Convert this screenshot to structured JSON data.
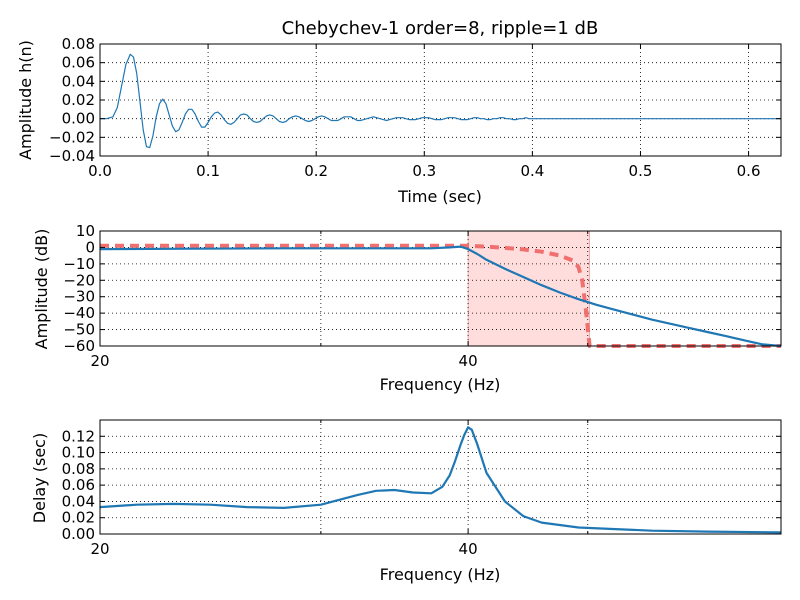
{
  "chart_data": [
    {
      "type": "line",
      "title": "Chebychev-1 order=8, ripple=1 dB",
      "xlabel": "Time (sec)",
      "ylabel": "Amplitude h(n)",
      "xlim": [
        0,
        0.63
      ],
      "ylim": [
        -0.04,
        0.08
      ],
      "xticks": [
        0.0,
        0.1,
        0.2,
        0.3,
        0.4,
        0.5,
        0.6
      ],
      "xtick_labels": [
        "0.0",
        "0.1",
        "0.2",
        "0.3",
        "0.4",
        "0.5",
        "0.6"
      ],
      "yticks": [
        -0.04,
        -0.02,
        0.0,
        0.02,
        0.04,
        0.06,
        0.08
      ],
      "ytick_labels": [
        "−0.04",
        "−0.02",
        "0.00",
        "0.02",
        "0.04",
        "0.06",
        "0.08"
      ],
      "grid": true,
      "series": [
        {
          "color": "#1f77b4",
          "x": [
            0.0,
            0.006,
            0.012,
            0.016,
            0.02,
            0.024,
            0.028,
            0.031,
            0.034,
            0.037,
            0.04,
            0.043,
            0.046,
            0.049,
            0.052,
            0.055,
            0.058,
            0.061,
            0.064,
            0.067,
            0.07,
            0.073,
            0.076,
            0.079,
            0.082,
            0.085,
            0.088,
            0.091,
            0.094,
            0.097,
            0.1,
            0.103,
            0.106,
            0.109,
            0.112,
            0.115,
            0.118,
            0.121,
            0.124,
            0.127,
            0.13,
            0.133,
            0.136,
            0.139,
            0.142,
            0.145,
            0.148,
            0.151,
            0.154,
            0.157,
            0.16,
            0.163,
            0.166,
            0.169,
            0.172,
            0.175,
            0.178,
            0.181,
            0.184,
            0.187,
            0.19,
            0.193,
            0.196,
            0.199,
            0.202,
            0.205,
            0.208,
            0.211,
            0.214,
            0.217,
            0.22,
            0.223,
            0.226,
            0.229,
            0.232,
            0.235,
            0.238,
            0.241,
            0.244,
            0.247,
            0.25,
            0.253,
            0.256,
            0.259,
            0.262,
            0.265,
            0.268,
            0.271,
            0.274,
            0.277,
            0.28,
            0.283,
            0.286,
            0.289,
            0.292,
            0.295,
            0.298,
            0.301,
            0.304,
            0.307,
            0.31,
            0.313,
            0.316,
            0.319,
            0.322,
            0.325,
            0.328,
            0.331,
            0.334,
            0.337,
            0.34,
            0.343,
            0.346,
            0.349,
            0.352,
            0.355,
            0.358,
            0.361,
            0.364,
            0.367,
            0.37,
            0.373,
            0.376,
            0.379,
            0.382,
            0.385,
            0.388,
            0.391,
            0.394,
            0.397,
            0.4,
            0.41,
            0.42,
            0.43,
            0.44,
            0.45,
            0.46,
            0.47,
            0.48,
            0.49,
            0.5,
            0.52,
            0.54,
            0.56,
            0.58,
            0.6,
            0.63
          ],
          "y": [
            0.0,
            0.0,
            0.002,
            0.012,
            0.035,
            0.058,
            0.069,
            0.066,
            0.048,
            0.018,
            -0.012,
            -0.03,
            -0.031,
            -0.018,
            0.002,
            0.016,
            0.021,
            0.016,
            0.004,
            -0.008,
            -0.014,
            -0.012,
            -0.004,
            0.005,
            0.01,
            0.01,
            0.005,
            -0.003,
            -0.009,
            -0.009,
            -0.004,
            0.002,
            0.006,
            0.007,
            0.004,
            -0.001,
            -0.005,
            -0.006,
            -0.004,
            0.0,
            0.004,
            0.005,
            0.004,
            0.0,
            -0.003,
            -0.004,
            -0.003,
            0.0,
            0.003,
            0.004,
            0.003,
            0.0,
            -0.003,
            -0.004,
            -0.003,
            0.0,
            0.002,
            0.003,
            0.002,
            0.0,
            -0.002,
            -0.003,
            -0.002,
            0.0,
            0.002,
            0.003,
            0.002,
            0.0,
            -0.002,
            -0.002,
            -0.002,
            0.0,
            0.002,
            0.002,
            0.002,
            0.0,
            -0.002,
            -0.002,
            -0.001,
            0.0,
            0.001,
            0.002,
            0.001,
            0.0,
            -0.001,
            -0.002,
            -0.001,
            0.0,
            0.001,
            0.001,
            0.001,
            0.0,
            -0.001,
            -0.001,
            -0.001,
            0.0,
            0.001,
            0.001,
            0.001,
            0.0,
            -0.001,
            -0.001,
            -0.001,
            0.0,
            0.001,
            0.001,
            0.001,
            0.0,
            -0.001,
            -0.001,
            -0.001,
            0.0,
            0.001,
            0.001,
            0.0,
            0.0,
            -0.001,
            -0.001,
            0.0,
            0.0,
            0.001,
            0.001,
            0.0,
            0.0,
            -0.001,
            -0.001,
            0.0,
            0.0,
            0.001,
            0.0,
            0.0,
            0.0,
            0.0,
            0.0,
            0.0,
            0.0,
            0.0,
            0.0,
            0.0,
            0.0,
            0.0,
            0.0,
            0.0,
            0.0,
            0.0,
            0.0,
            0.0
          ]
        }
      ]
    },
    {
      "type": "line",
      "xlabel": "Frequency (Hz)",
      "ylabel": "Amplitude (dB)",
      "xlim": [
        20,
        57
      ],
      "ylim": [
        -60,
        10
      ],
      "xticks": [
        20,
        40
      ],
      "xtick_labels": [
        "20",
        "40"
      ],
      "minor_xticks": [
        32,
        46.5
      ],
      "yticks": [
        -60,
        -50,
        -40,
        -30,
        -20,
        -10,
        0,
        10
      ],
      "ytick_labels": [
        "−60",
        "−50",
        "−40",
        "−30",
        "−20",
        "−10",
        "0",
        "10"
      ],
      "grid": true,
      "shaded_region": {
        "x": [
          40,
          46.6
        ],
        "y": [
          -60,
          10
        ],
        "color": "#ffdddd"
      },
      "series": [
        {
          "style": "dashed",
          "color": "#f07070",
          "x": [
            20,
            25,
            30,
            35,
            40,
            41,
            42,
            43,
            44,
            45,
            45.7,
            46.0,
            46.2,
            46.4,
            46.6,
            47,
            50,
            57
          ],
          "y": [
            1,
            1,
            1,
            1,
            1,
            0.5,
            -0.3,
            -1.2,
            -2.6,
            -5.0,
            -8.0,
            -12.0,
            -20.0,
            -38.0,
            -60,
            -60,
            -60,
            -60
          ]
        },
        {
          "style": "solid",
          "color": "#1f77b4",
          "x": [
            20,
            25,
            30,
            35,
            38,
            39,
            39.6,
            40,
            40.5,
            41,
            42,
            43,
            44,
            45,
            46,
            47,
            48,
            49,
            50,
            51,
            52,
            53,
            54,
            55,
            56,
            57
          ],
          "y": [
            -1,
            -0.8,
            -0.5,
            -0.5,
            -0.5,
            0,
            0.5,
            -1,
            -4,
            -7.5,
            -13,
            -18,
            -23,
            -27.5,
            -31.5,
            -35,
            -38,
            -41,
            -44,
            -46.5,
            -49,
            -51.5,
            -54,
            -56.5,
            -59,
            -61.5
          ]
        }
      ]
    },
    {
      "type": "line",
      "xlabel": "Frequency (Hz)",
      "ylabel": "Delay (sec)",
      "xlim": [
        20,
        57
      ],
      "ylim": [
        0,
        0.14
      ],
      "xticks": [
        20,
        40
      ],
      "xtick_labels": [
        "20",
        "40"
      ],
      "minor_xticks": [
        32,
        46.5
      ],
      "yticks": [
        0.0,
        0.02,
        0.04,
        0.06,
        0.08,
        0.1,
        0.12
      ],
      "ytick_labels": [
        "0.00",
        "0.02",
        "0.04",
        "0.06",
        "0.08",
        "0.10",
        "0.12"
      ],
      "grid": true,
      "series": [
        {
          "color": "#1f77b4",
          "x": [
            20,
            22,
            24,
            26,
            28,
            30,
            32,
            33,
            34,
            35,
            36,
            37,
            38,
            38.6,
            39.0,
            39.3,
            39.6,
            39.8,
            40.0,
            40.2,
            40.5,
            41,
            42,
            43,
            44,
            46,
            48,
            50,
            53,
            57
          ],
          "y": [
            0.033,
            0.036,
            0.037,
            0.036,
            0.033,
            0.032,
            0.036,
            0.042,
            0.048,
            0.053,
            0.054,
            0.051,
            0.05,
            0.058,
            0.072,
            0.09,
            0.11,
            0.122,
            0.131,
            0.128,
            0.11,
            0.075,
            0.04,
            0.022,
            0.014,
            0.008,
            0.006,
            0.004,
            0.003,
            0.002
          ]
        }
      ]
    }
  ]
}
